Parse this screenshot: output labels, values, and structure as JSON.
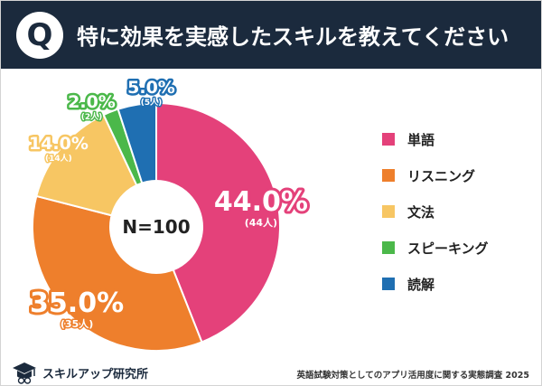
{
  "header": {
    "badge": "Q",
    "title": "特に効果を実感したスキルを教えてください"
  },
  "chart_data": {
    "type": "pie",
    "center_label": "N=100",
    "series": [
      {
        "name": "単語",
        "value": 44.0,
        "label": "44.0%",
        "count_label": "(44人)",
        "color": "#e4417a"
      },
      {
        "name": "リスニング",
        "value": 35.0,
        "label": "35.0%",
        "count_label": "(35人)",
        "color": "#ee7f2c"
      },
      {
        "name": "文法",
        "value": 14.0,
        "label": "14.0%",
        "count_label": "(14人)",
        "color": "#f7c663"
      },
      {
        "name": "スピーキング",
        "value": 2.0,
        "label": "2.0%",
        "count_label": "(2人)",
        "color": "#4bb84a"
      },
      {
        "name": "読解",
        "value": 5.0,
        "label": "5.0%",
        "count_label": "(5人)",
        "color": "#1f6fb2"
      }
    ]
  },
  "footer": {
    "brand": "スキルアップ研究所",
    "source": "英語試験対策としてのアプリ活用度に関する実態調査 2025"
  }
}
